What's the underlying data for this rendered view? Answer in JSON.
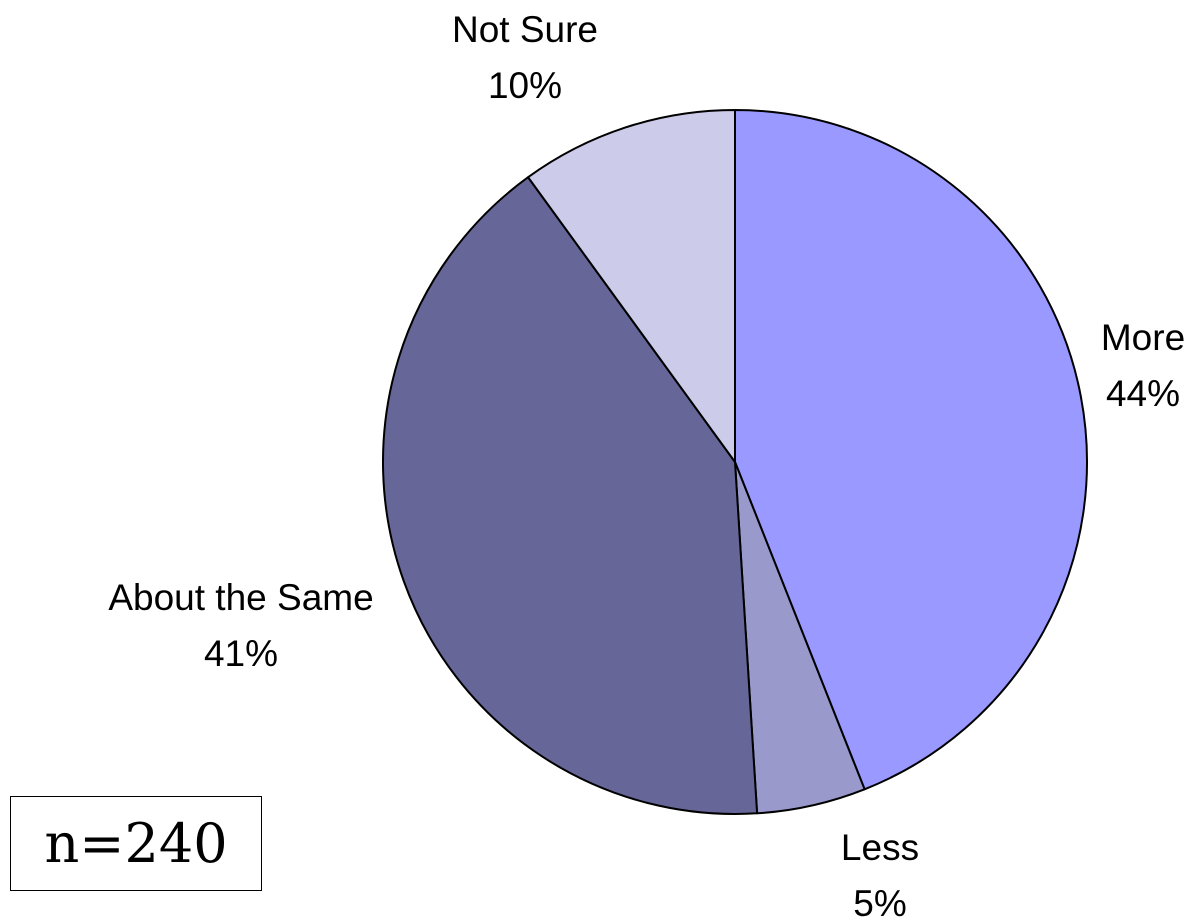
{
  "chart_data": {
    "type": "pie",
    "start_angle_deg": 0,
    "direction": "clockwise",
    "slices": [
      {
        "name": "More",
        "value": 44,
        "label": "44%",
        "color": "#9999ff"
      },
      {
        "name": "Less",
        "value": 5,
        "label": "5%",
        "color": "#9999cc"
      },
      {
        "name": "About the Same",
        "value": 41,
        "label": "41%",
        "color": "#666699"
      },
      {
        "name": "Not Sure",
        "value": 10,
        "label": "10%",
        "color": "#ccccea"
      }
    ],
    "slice_border_color": "#000000"
  },
  "sample_size": {
    "text": "n=240"
  }
}
